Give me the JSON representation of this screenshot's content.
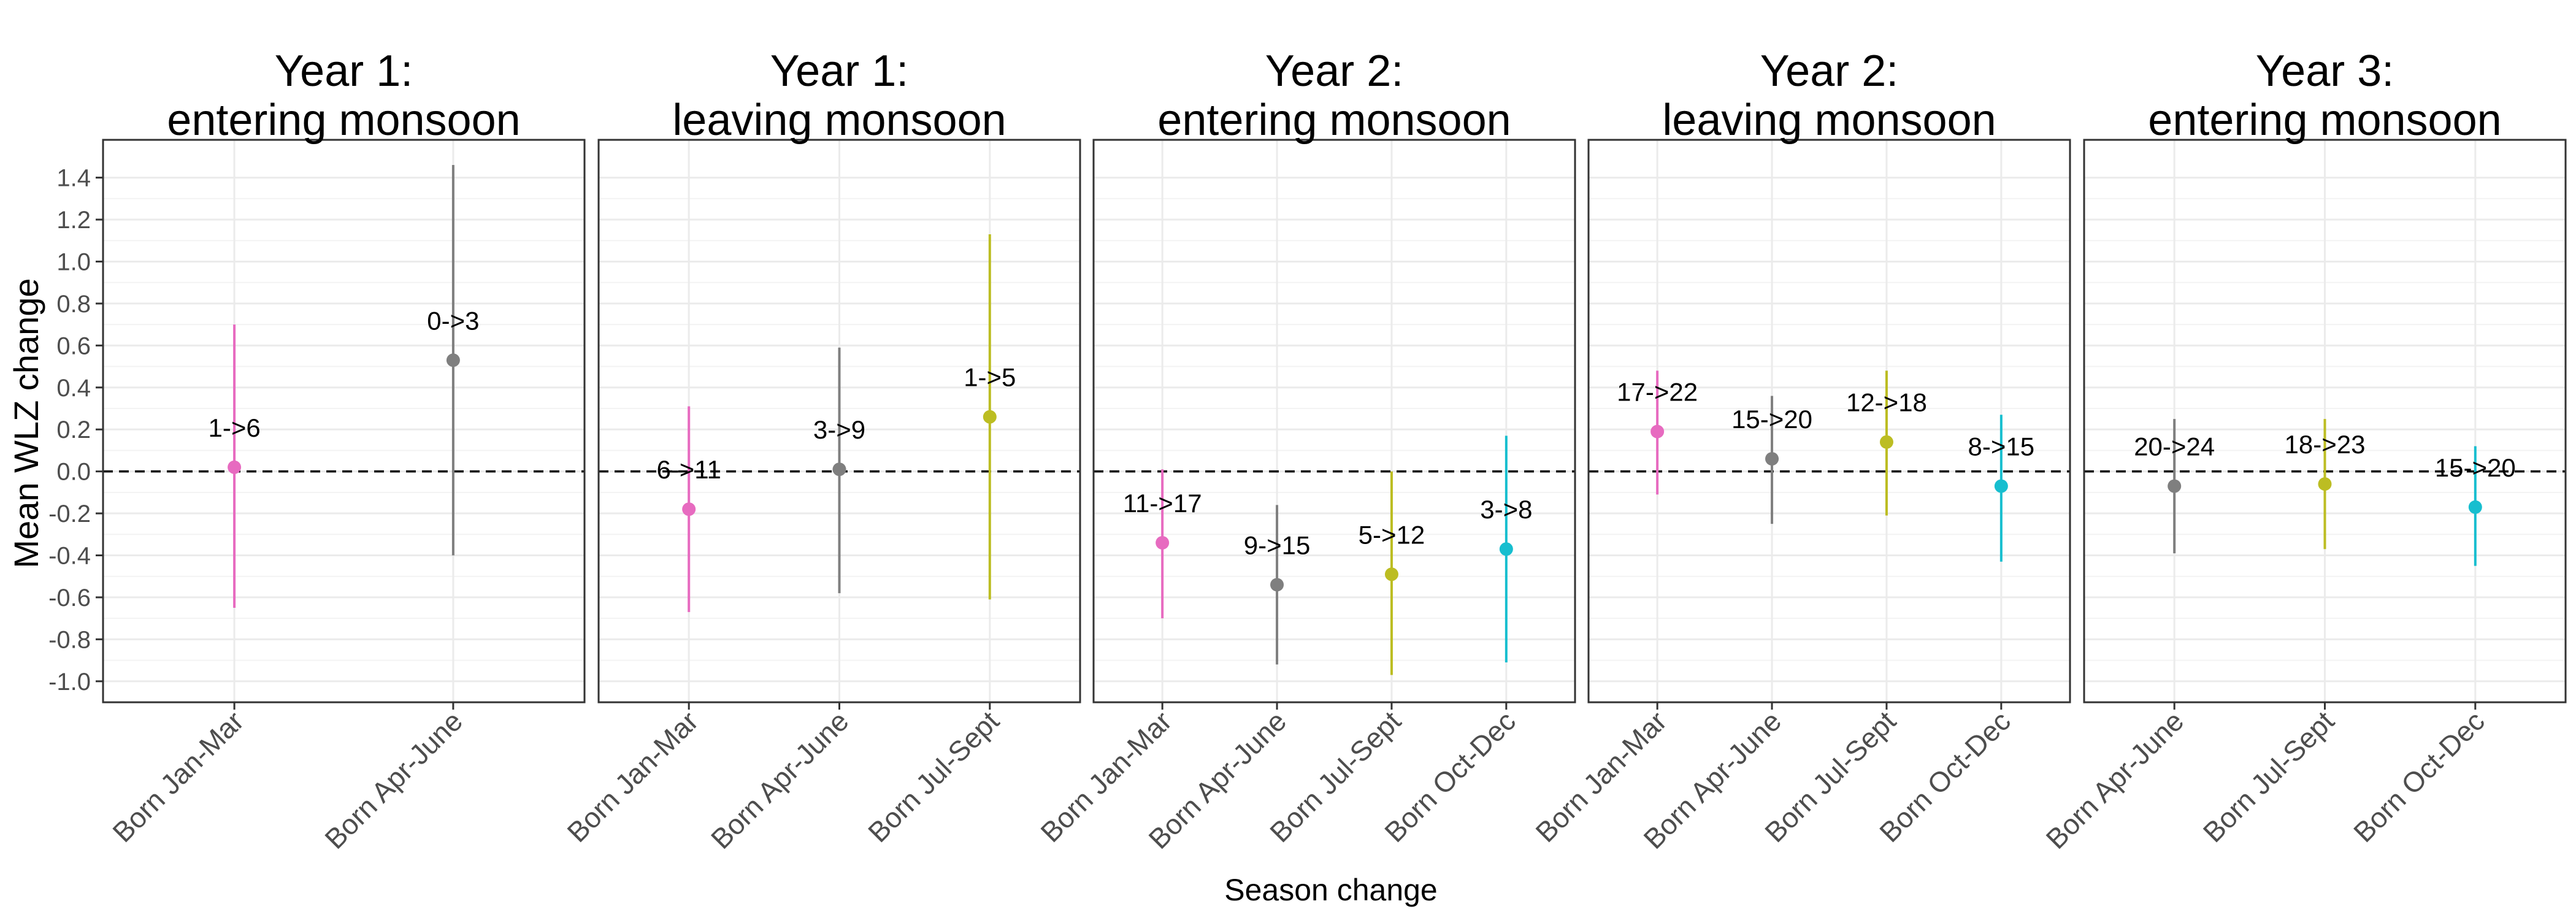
{
  "chart_data": {
    "type": "scatter",
    "xlabel": "Season change",
    "ylabel": "Mean WLZ change",
    "ylim": [
      -1.1,
      1.58
    ],
    "y_ticks": [
      -1.0,
      -0.8,
      -0.6,
      -0.4,
      -0.2,
      0.0,
      0.2,
      0.4,
      0.6,
      0.8,
      1.0,
      1.2,
      1.4
    ],
    "y_tick_labels": [
      "-1.0",
      "-0.8",
      "-0.6",
      "-0.4",
      "-0.2",
      "0.0",
      "0.2",
      "0.4",
      "0.6",
      "0.8",
      "1.0",
      "1.2",
      "1.4"
    ],
    "reference_line": 0.0,
    "grid": true,
    "colors": {
      "Born Jan-Mar": "#e76bc0",
      "Born Apr-June": "#7f7f7f",
      "Born Jul-Sept": "#bcbd22",
      "Born Oct-Dec": "#17becf"
    },
    "panels": [
      {
        "title_line1": "Year 1:",
        "title_line2": "entering monsoon",
        "points": [
          {
            "category": "Born Jan-Mar",
            "y": 0.02,
            "lower": -0.65,
            "upper": 0.7,
            "label": "1->6"
          },
          {
            "category": "Born Apr-June",
            "y": 0.53,
            "lower": -0.4,
            "upper": 1.46,
            "label": "0->3"
          }
        ]
      },
      {
        "title_line1": "Year 1:",
        "title_line2": "leaving monsoon",
        "points": [
          {
            "category": "Born Jan-Mar",
            "y": -0.18,
            "lower": -0.67,
            "upper": 0.31,
            "label": "6->11"
          },
          {
            "category": "Born Apr-June",
            "y": 0.01,
            "lower": -0.58,
            "upper": 0.59,
            "label": "3->9"
          },
          {
            "category": "Born Jul-Sept",
            "y": 0.26,
            "lower": -0.61,
            "upper": 1.13,
            "label": "1->5"
          }
        ]
      },
      {
        "title_line1": "Year 2:",
        "title_line2": "entering monsoon",
        "points": [
          {
            "category": "Born Jan-Mar",
            "y": -0.34,
            "lower": -0.7,
            "upper": 0.01,
            "label": "11->17"
          },
          {
            "category": "Born Apr-June",
            "y": -0.54,
            "lower": -0.92,
            "upper": -0.16,
            "label": "9->15"
          },
          {
            "category": "Born Jul-Sept",
            "y": -0.49,
            "lower": -0.97,
            "upper": 0.0,
            "label": "5->12"
          },
          {
            "category": "Born Oct-Dec",
            "y": -0.37,
            "lower": -0.91,
            "upper": 0.17,
            "label": "3->8"
          }
        ]
      },
      {
        "title_line1": "Year 2:",
        "title_line2": "leaving monsoon",
        "points": [
          {
            "category": "Born Jan-Mar",
            "y": 0.19,
            "lower": -0.11,
            "upper": 0.48,
            "label": "17->22"
          },
          {
            "category": "Born Apr-June",
            "y": 0.06,
            "lower": -0.25,
            "upper": 0.36,
            "label": "15->20"
          },
          {
            "category": "Born Jul-Sept",
            "y": 0.14,
            "lower": -0.21,
            "upper": 0.48,
            "label": "12->18"
          },
          {
            "category": "Born Oct-Dec",
            "y": -0.07,
            "lower": -0.43,
            "upper": 0.27,
            "label": "8->15"
          }
        ]
      },
      {
        "title_line1": "Year 3:",
        "title_line2": "entering monsoon",
        "points": [
          {
            "category": "Born Apr-June",
            "y": -0.07,
            "lower": -0.39,
            "upper": 0.25,
            "label": "20->24"
          },
          {
            "category": "Born Jul-Sept",
            "y": -0.06,
            "lower": -0.37,
            "upper": 0.25,
            "label": "18->23"
          },
          {
            "category": "Born Oct-Dec",
            "y": -0.17,
            "lower": -0.45,
            "upper": 0.12,
            "label": "15->20"
          }
        ]
      }
    ]
  }
}
